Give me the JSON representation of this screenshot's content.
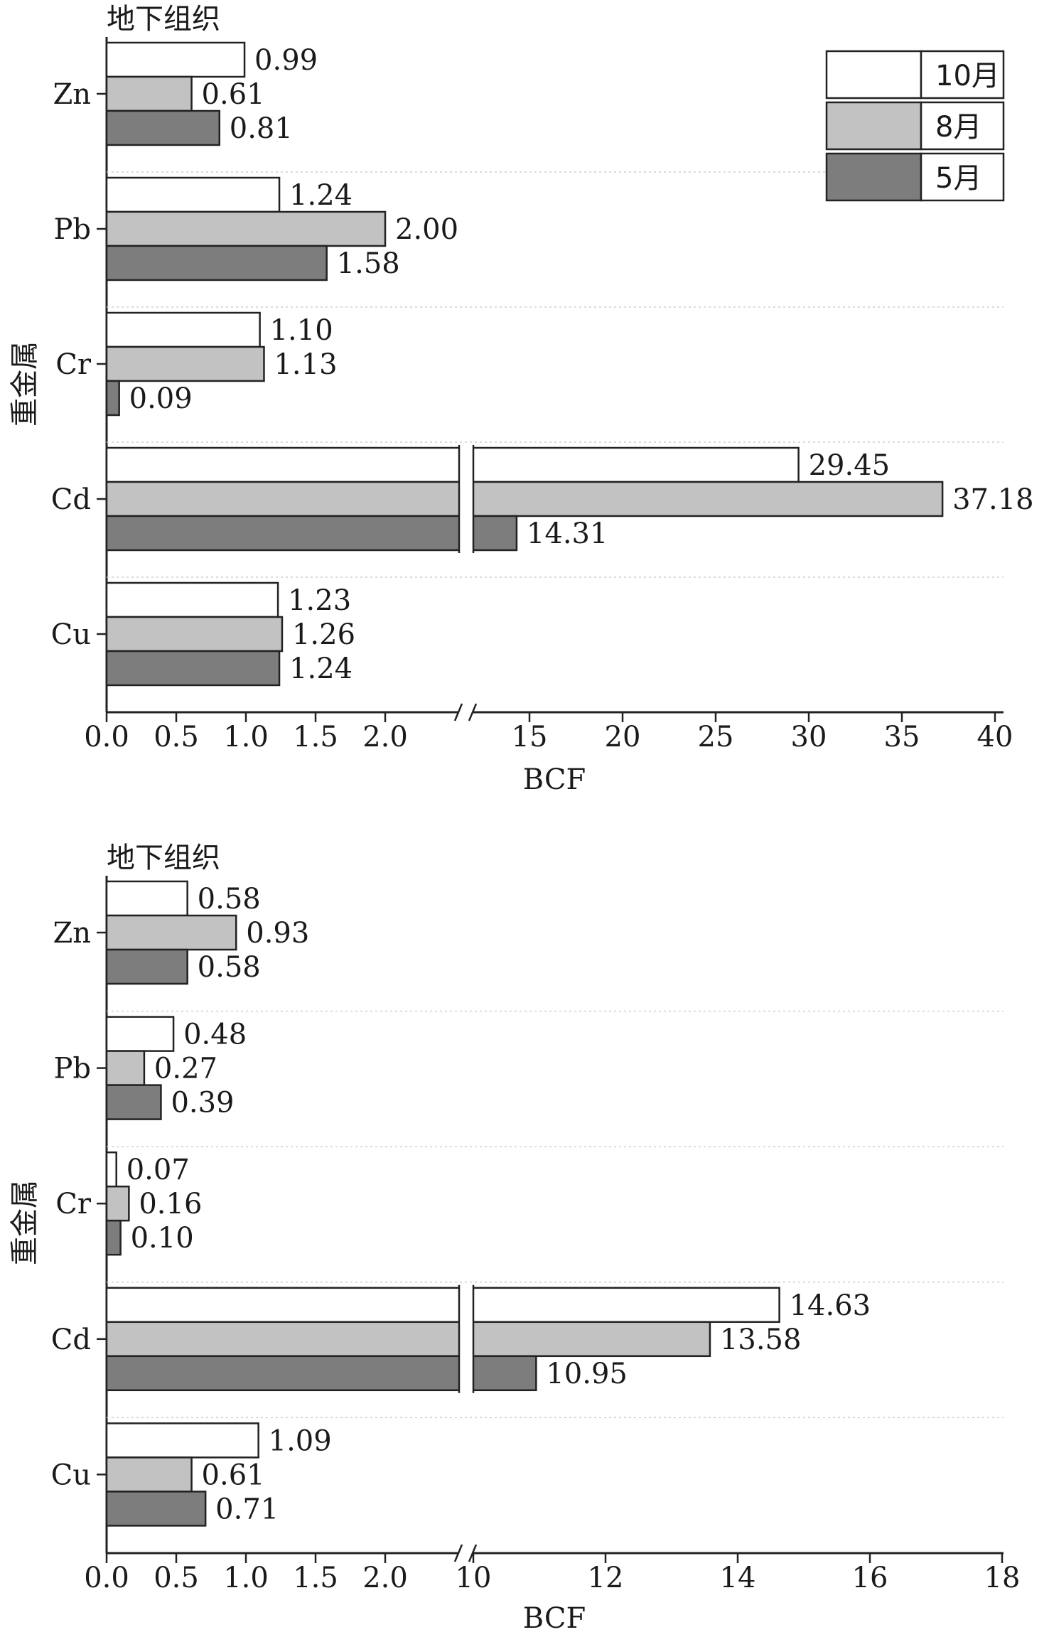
{
  "legend": [
    {
      "label": "10月",
      "color": "#ffffff"
    },
    {
      "label": "8月",
      "color": "#c2c2c2"
    },
    {
      "label": "5月",
      "color": "#7d7d7d"
    }
  ],
  "chart_data": [
    {
      "type": "bar",
      "orientation": "horizontal",
      "title": "地下组织",
      "xlabel": "BCF",
      "ylabel": "重金属",
      "categories": [
        "Zn",
        "Pb",
        "Cr",
        "Cd",
        "Cu"
      ],
      "series": [
        {
          "name": "10月",
          "values": [
            0.99,
            1.24,
            1.1,
            29.45,
            1.23
          ],
          "labels": [
            "0.99",
            "1.24",
            "1.10",
            "29.45",
            "1.23"
          ]
        },
        {
          "name": "8月",
          "values": [
            0.61,
            2.0,
            1.13,
            37.18,
            1.26
          ],
          "labels": [
            "0.61",
            "2.00",
            "1.13",
            "37.18",
            "1.26"
          ]
        },
        {
          "name": "5月",
          "values": [
            0.81,
            1.58,
            0.09,
            14.31,
            1.24
          ],
          "labels": [
            "0.81",
            "1.58",
            "0.09",
            "14.31",
            "1.24"
          ]
        }
      ],
      "x_axis_break": true,
      "x_ticks_low": [
        "0.0",
        "0.5",
        "1.0",
        "1.5",
        "2.0"
      ],
      "x_ticks_high": [
        "15",
        "20",
        "25",
        "30",
        "35",
        "40"
      ],
      "xlim_low": [
        0,
        2.5
      ],
      "xlim_high": [
        12.5,
        40
      ],
      "legend_position": "top-right",
      "grid": false
    },
    {
      "type": "bar",
      "orientation": "horizontal",
      "title": "地下组织",
      "xlabel": "BCF",
      "ylabel": "重金属",
      "categories": [
        "Zn",
        "Pb",
        "Cr",
        "Cd",
        "Cu"
      ],
      "series": [
        {
          "name": "10月",
          "values": [
            0.58,
            0.48,
            0.07,
            14.63,
            1.09
          ],
          "labels": [
            "0.58",
            "0.48",
            "0.07",
            "14.63",
            "1.09"
          ]
        },
        {
          "name": "8月",
          "values": [
            0.93,
            0.27,
            0.16,
            13.58,
            0.61
          ],
          "labels": [
            "0.93",
            "0.27",
            "0.16",
            "13.58",
            "0.61"
          ]
        },
        {
          "name": "5月",
          "values": [
            0.58,
            0.39,
            0.1,
            10.95,
            0.71
          ],
          "labels": [
            "0.58",
            "0.39",
            "0.10",
            "10.95",
            "0.71"
          ]
        }
      ],
      "x_axis_break": true,
      "x_ticks_low": [
        "0.0",
        "0.5",
        "1.0",
        "1.5",
        "2.0"
      ],
      "x_ticks_high": [
        "10",
        "12",
        "14",
        "16",
        "18"
      ],
      "xlim_low": [
        0,
        2.5
      ],
      "xlim_high": [
        10,
        18
      ],
      "grid": false
    }
  ]
}
